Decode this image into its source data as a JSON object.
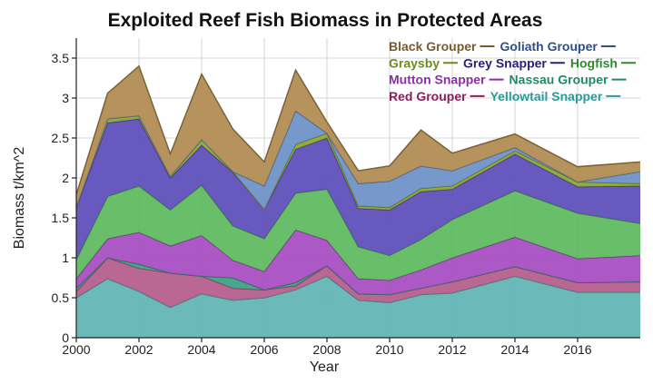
{
  "chart_data": {
    "type": "area",
    "stacked": true,
    "title": "Exploited Reef Fish Biomass in Protected Areas",
    "xlabel": "Year",
    "ylabel": "Biomass t/km^2",
    "xlim": [
      2000,
      2018
    ],
    "ylim": [
      0,
      3.75
    ],
    "xticks": [
      2000,
      2002,
      2004,
      2006,
      2008,
      2010,
      2012,
      2014,
      2016
    ],
    "yticks": [
      0,
      0.5,
      1,
      1.5,
      2,
      2.5,
      3,
      3.5
    ],
    "ytick_labels": [
      "0",
      "0.5",
      "1",
      "1.5",
      "2",
      "2.5",
      "3",
      "3.5"
    ],
    "grid": true,
    "legend_position": "top-right",
    "x": [
      2000,
      2001,
      2002,
      2003,
      2004,
      2005,
      2006,
      2007,
      2008,
      2009,
      2010,
      2011,
      2012,
      2014,
      2016,
      2018
    ],
    "series": [
      {
        "name": "Yellowtail Snapper",
        "color": "#5fb3b3",
        "values": [
          0.5,
          0.74,
          0.58,
          0.38,
          0.55,
          0.47,
          0.5,
          0.6,
          0.77,
          0.47,
          0.44,
          0.54,
          0.56,
          0.77,
          0.57,
          0.57
        ]
      },
      {
        "name": "Red Grouper",
        "color": "#b45a8a",
        "values": [
          0.08,
          0.26,
          0.29,
          0.43,
          0.22,
          0.15,
          0.1,
          0.05,
          0.13,
          0.08,
          0.1,
          0.08,
          0.14,
          0.12,
          0.12,
          0.13
        ]
      },
      {
        "name": "Nassau Grouper",
        "color": "#3b9e7e",
        "values": [
          0.04,
          0.0,
          0.05,
          0.0,
          0.0,
          0.13,
          0.0,
          0.04,
          0.0,
          0.0,
          0.0,
          0.0,
          0.0,
          0.0,
          0.0,
          0.0
        ]
      },
      {
        "name": "Mutton Snapper",
        "color": "#a64bc0",
        "values": [
          0.12,
          0.24,
          0.4,
          0.34,
          0.51,
          0.22,
          0.23,
          0.66,
          0.32,
          0.19,
          0.18,
          0.23,
          0.3,
          0.37,
          0.3,
          0.33
        ]
      },
      {
        "name": "Hogfish",
        "color": "#5cb85c",
        "values": [
          0.24,
          0.53,
          0.58,
          0.45,
          0.63,
          0.43,
          0.41,
          0.46,
          0.64,
          0.4,
          0.31,
          0.38,
          0.48,
          0.58,
          0.57,
          0.4
        ]
      },
      {
        "name": "Grey Snapper",
        "color": "#5b4bb8",
        "values": [
          0.65,
          0.92,
          0.84,
          0.4,
          0.5,
          0.67,
          0.37,
          0.55,
          0.64,
          0.48,
          0.57,
          0.6,
          0.38,
          0.46,
          0.33,
          0.47
        ]
      },
      {
        "name": "Graysby",
        "color": "#8aa52c",
        "values": [
          0.01,
          0.05,
          0.04,
          0.02,
          0.07,
          0.01,
          0.0,
          0.06,
          0.06,
          0.03,
          0.03,
          0.04,
          0.04,
          0.04,
          0.06,
          0.03
        ]
      },
      {
        "name": "Goliath Grouper",
        "color": "#6b8fc7",
        "values": [
          0.0,
          0.0,
          0.0,
          0.0,
          0.0,
          0.0,
          0.29,
          0.42,
          0.0,
          0.28,
          0.33,
          0.28,
          0.19,
          0.04,
          0.0,
          0.15
        ]
      },
      {
        "name": "Black Grouper",
        "color": "#b08a4e",
        "values": [
          0.15,
          0.32,
          0.62,
          0.28,
          0.82,
          0.53,
          0.3,
          0.51,
          0.14,
          0.16,
          0.19,
          0.45,
          0.22,
          0.17,
          0.19,
          0.12
        ]
      }
    ],
    "legend": [
      {
        "name": "Black Grouper",
        "color": "#7a5a2a"
      },
      {
        "name": "Goliath Grouper",
        "color": "#2d4f8a"
      },
      {
        "name": "Graysby",
        "color": "#6f8a1a"
      },
      {
        "name": "Grey Snapper",
        "color": "#2b1f7a"
      },
      {
        "name": "Hogfish",
        "color": "#2e8b2e"
      },
      {
        "name": "Mutton Snapper",
        "color": "#8a2eaa"
      },
      {
        "name": "Nassau Grouper",
        "color": "#1f8a64"
      },
      {
        "name": "Red Grouper",
        "color": "#8a1f5a"
      },
      {
        "name": "Yellowtail Snapper",
        "color": "#2a9a9a"
      }
    ]
  }
}
